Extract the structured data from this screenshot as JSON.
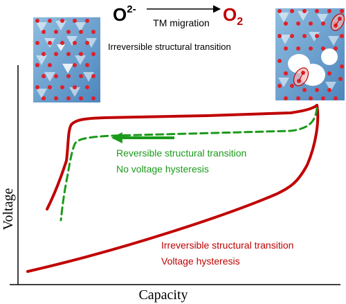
{
  "header": {
    "reactant_base": "O",
    "reactant_sup": "2-",
    "arrow_label": "TM migration",
    "product_base": "O",
    "product_sub": "2"
  },
  "transition_label": "Irreversible structural transition",
  "curves": {
    "reversible": {
      "line1": "Reversible structural transition",
      "line2": "No voltage hysteresis"
    },
    "irreversible": {
      "line1": "Irreversible structural transition",
      "line2": "Voltage hysteresis"
    }
  },
  "axes": {
    "x_label": "Capacity",
    "y_label": "Voltage"
  },
  "colors": {
    "red": "#c00000",
    "green": "#1a9a1a",
    "black": "#000000",
    "lattice_blue": "#6fa3cf",
    "oxygen_red": "#e0202a"
  },
  "icons": {
    "left_panel": "ordered-lattice-illustration",
    "right_panel": "disordered-lattice-with-o2-illustration"
  }
}
